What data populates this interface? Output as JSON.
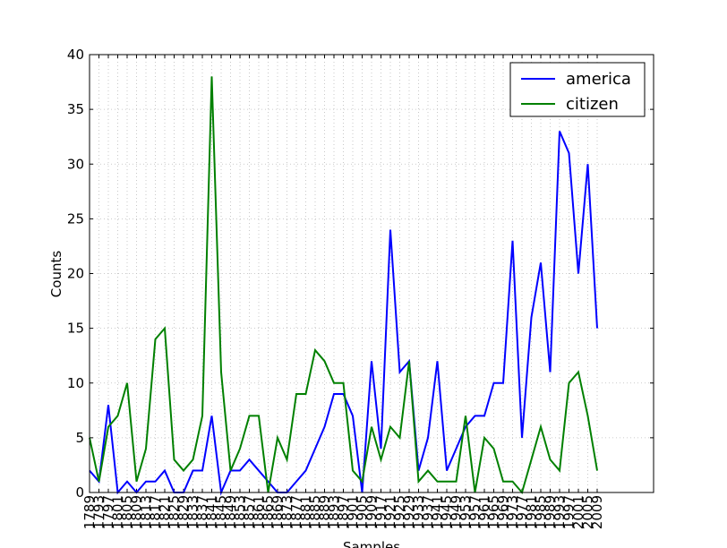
{
  "chart_data": {
    "type": "line",
    "xlabel": "Samples",
    "ylabel": "Counts",
    "categories": [
      "1789",
      "1793",
      "1797",
      "1801",
      "1805",
      "1809",
      "1813",
      "1817",
      "1821",
      "1825",
      "1829",
      "1833",
      "1837",
      "1841",
      "1845",
      "1849",
      "1853",
      "1857",
      "1861",
      "1865",
      "1869",
      "1873",
      "1877",
      "1881",
      "1885",
      "1889",
      "1893",
      "1897",
      "1901",
      "1905",
      "1909",
      "1917",
      "1921",
      "1925",
      "1929",
      "1933",
      "1937",
      "1941",
      "1945",
      "1949",
      "1953",
      "1957",
      "1961",
      "1965",
      "1969",
      "1973",
      "1977",
      "1981",
      "1985",
      "1989",
      "1993",
      "1997",
      "2001",
      "2005",
      "2009"
    ],
    "series": [
      {
        "name": "america",
        "color": "#0000ff",
        "values": [
          2,
          1,
          8,
          0,
          1,
          0,
          1,
          1,
          2,
          0,
          0,
          2,
          2,
          7,
          0,
          2,
          2,
          3,
          2,
          1,
          0,
          0,
          1,
          2,
          4,
          6,
          9,
          9,
          7,
          0,
          12,
          4,
          24,
          11,
          12,
          2,
          5,
          12,
          2,
          4,
          6,
          7,
          7,
          10,
          10,
          23,
          5,
          16,
          21,
          11,
          33,
          31,
          20,
          30,
          15
        ]
      },
      {
        "name": "citizen",
        "color": "#008000",
        "values": [
          5,
          1,
          6,
          7,
          10,
          1,
          4,
          14,
          15,
          3,
          2,
          3,
          7,
          38,
          11,
          2,
          4,
          7,
          7,
          0,
          5,
          3,
          9,
          9,
          13,
          12,
          10,
          10,
          2,
          1,
          6,
          3,
          6,
          5,
          12,
          1,
          2,
          1,
          1,
          1,
          7,
          0,
          5,
          4,
          1,
          1,
          0,
          3,
          6,
          3,
          2,
          10,
          11,
          7,
          2
        ]
      }
    ],
    "ylim": [
      0,
      40
    ],
    "yticks": [
      0,
      5,
      10,
      15,
      20,
      25,
      30,
      35,
      40
    ],
    "grid": true,
    "legend": "upper right"
  }
}
